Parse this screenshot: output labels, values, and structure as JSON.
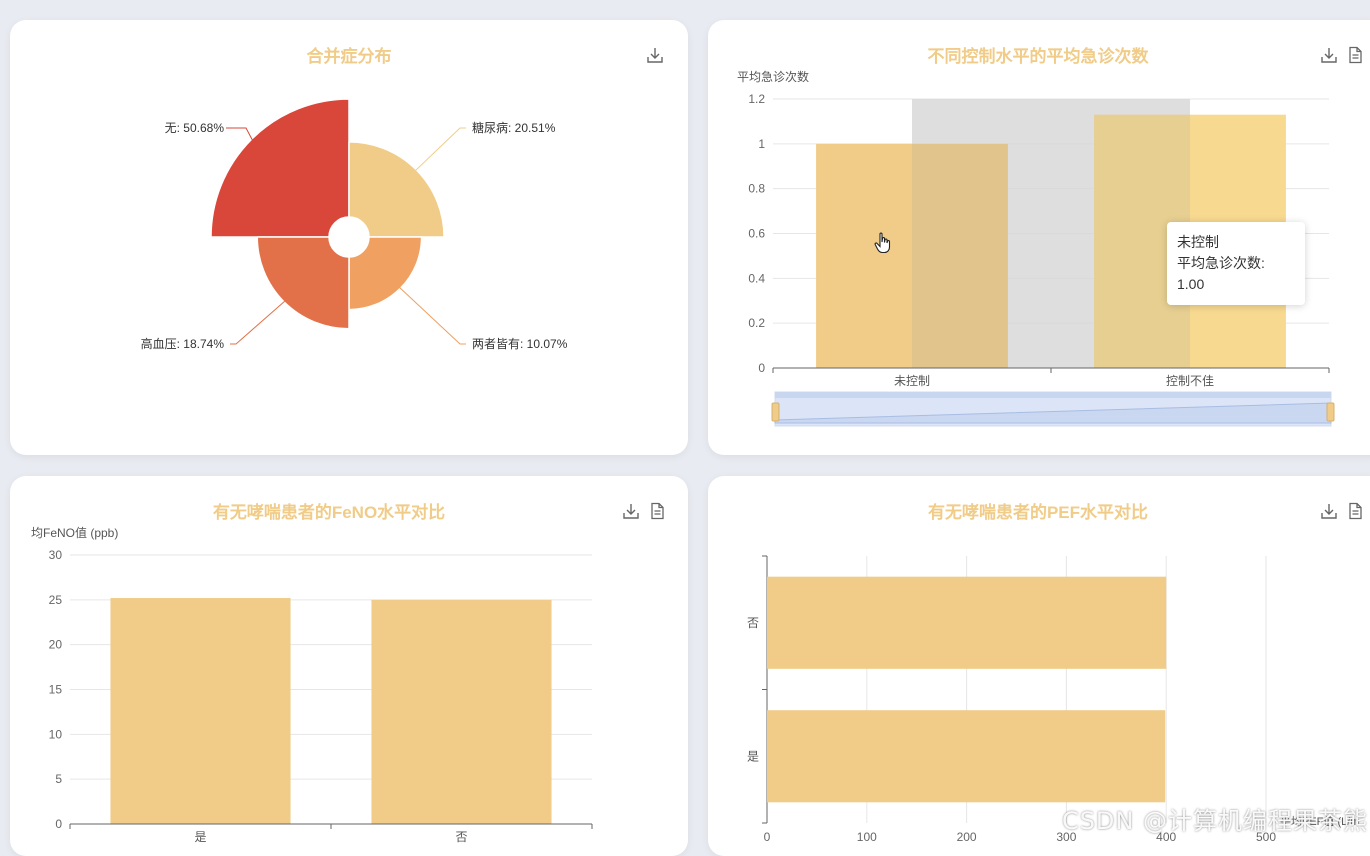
{
  "colors": {
    "title": "#f0cc88",
    "bar": "#f0cc88",
    "bar_light": "#f7d98f",
    "axis": "#666666",
    "grid": "#e6e6e6"
  },
  "icons": {
    "download": "download-icon",
    "data_view": "data-view-icon"
  },
  "watermark": "CSDN @计算机编程果茶熊",
  "charts": [
    {
      "chart_data": {
        "type": "pie",
        "subtype": "rose",
        "title": "合并症分布",
        "series": [
          {
            "name": "无",
            "value": 50.68,
            "label": "无: 50.68%",
            "color": "#d9473a"
          },
          {
            "name": "糖尿病",
            "value": 20.51,
            "label": "糖尿病: 20.51%",
            "color": "#f0cc88"
          },
          {
            "name": "两者皆有",
            "value": 10.07,
            "label": "两者皆有: 10.07%",
            "color": "#f0a060"
          },
          {
            "name": "高血压",
            "value": 18.74,
            "label": "高血压: 18.74%",
            "color": "#e2714a"
          }
        ]
      }
    },
    {
      "chart_data": {
        "type": "bar",
        "title": "不同控制水平的平均急诊次数",
        "ylabel": "平均急诊次数",
        "categories": [
          "未控制",
          "控制不佳"
        ],
        "values": [
          1.0,
          1.13
        ],
        "ylim": [
          0,
          1.2
        ],
        "yticks": [
          "0",
          "0.2",
          "0.4",
          "0.6",
          "0.8",
          "1",
          "1.2"
        ],
        "highlight_category": "未控制",
        "grid": true,
        "data_zoom": true,
        "tooltip": {
          "title": "未控制",
          "line": "平均急诊次数: 1.00"
        }
      }
    },
    {
      "chart_data": {
        "type": "bar",
        "title": "有无哮喘患者的FeNO水平对比",
        "ylabel": "均FeNO值 (ppb)",
        "categories": [
          "是",
          "否"
        ],
        "values": [
          25.2,
          25.0
        ],
        "ylim": [
          0,
          30
        ],
        "yticks": [
          "0",
          "5",
          "10",
          "15",
          "20",
          "25",
          "30"
        ],
        "grid": true
      }
    },
    {
      "chart_data": {
        "type": "bar",
        "orientation": "horizontal",
        "title": "有无哮喘患者的PEF水平对比",
        "xlabel": "平均PEF值 (L/m",
        "categories": [
          "是",
          "否"
        ],
        "values": [
          399,
          400
        ],
        "xlim": [
          0,
          500
        ],
        "xticks": [
          "0",
          "100",
          "200",
          "300",
          "400",
          "500"
        ],
        "grid": true
      }
    }
  ]
}
